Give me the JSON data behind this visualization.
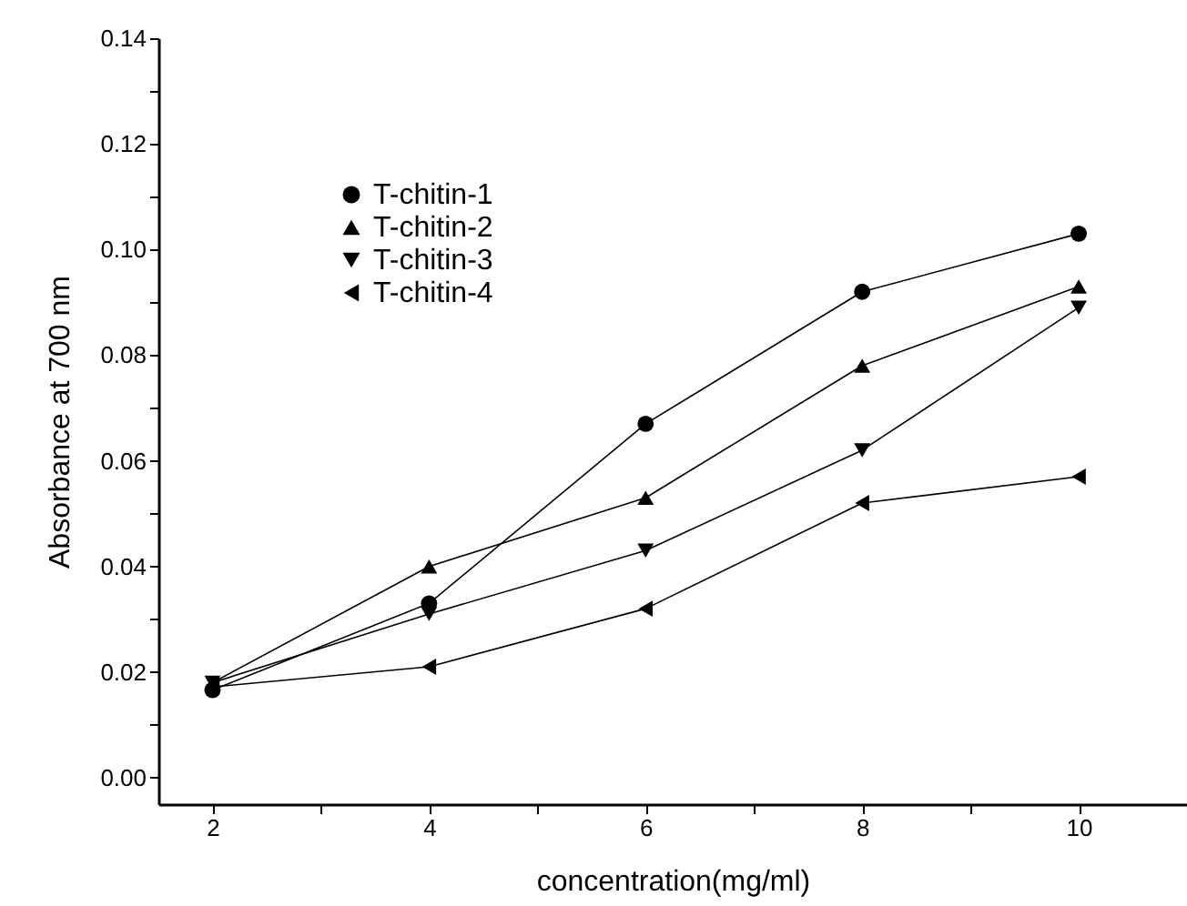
{
  "chart_data": {
    "type": "line",
    "xlabel": "concentration(mg/ml)",
    "ylabel": "Absorbance at 700 nm",
    "x": [
      2,
      4,
      6,
      8,
      10
    ],
    "series": [
      {
        "name": "T-chitin-1",
        "color": "#000000",
        "marker": "circle",
        "values": [
          0.0166,
          0.033,
          0.067,
          0.092,
          0.103
        ]
      },
      {
        "name": "T-chitin-2",
        "color": "#000000",
        "marker": "triangle",
        "values": [
          0.018,
          0.04,
          0.053,
          0.078,
          0.093
        ]
      },
      {
        "name": "T-chitin-3",
        "color": "#000000",
        "marker": "triangle",
        "values": [
          0.018,
          0.031,
          0.043,
          0.062,
          0.089
        ]
      },
      {
        "name": "T-chitin-4",
        "color": "#000000",
        "marker": "triangle",
        "values": [
          0.0172,
          0.021,
          0.032,
          0.052,
          0.057
        ]
      }
    ],
    "xlim": [
      1.5,
      11
    ],
    "xticks": [
      2,
      {
        "value": 3,
        "label": null
      },
      4,
      {
        "value": 5,
        "label": null
      },
      6,
      {
        "value": 7,
        "label": null
      },
      8,
      {
        "value": 9,
        "label": null
      },
      10
    ],
    "ylim": [
      -0.005,
      0.14
    ],
    "yticks": [
      {
        "value": 0,
        "label": "0.00"
      },
      {
        "value": 0.01,
        "label": null
      },
      {
        "value": 0.02,
        "label": "0.02"
      },
      {
        "value": 0.03,
        "label": null
      },
      {
        "value": 0.04,
        "label": "0.04"
      },
      {
        "value": 0.05,
        "label": null
      },
      {
        "value": 0.06,
        "label": "0.06"
      },
      {
        "value": 0.07,
        "label": null
      },
      {
        "value": 0.08,
        "label": "0.08"
      },
      {
        "value": 0.09,
        "label": null
      },
      {
        "value": 0.1,
        "label": "0.10"
      },
      {
        "value": 0.11,
        "label": null
      },
      {
        "value": 0.12,
        "label": "0.12"
      },
      {
        "value": 0.13,
        "label": null
      },
      {
        "value": 0.14,
        "label": "0.14"
      }
    ],
    "grid": false,
    "legend": "top left",
    "line_style": "solid"
  }
}
